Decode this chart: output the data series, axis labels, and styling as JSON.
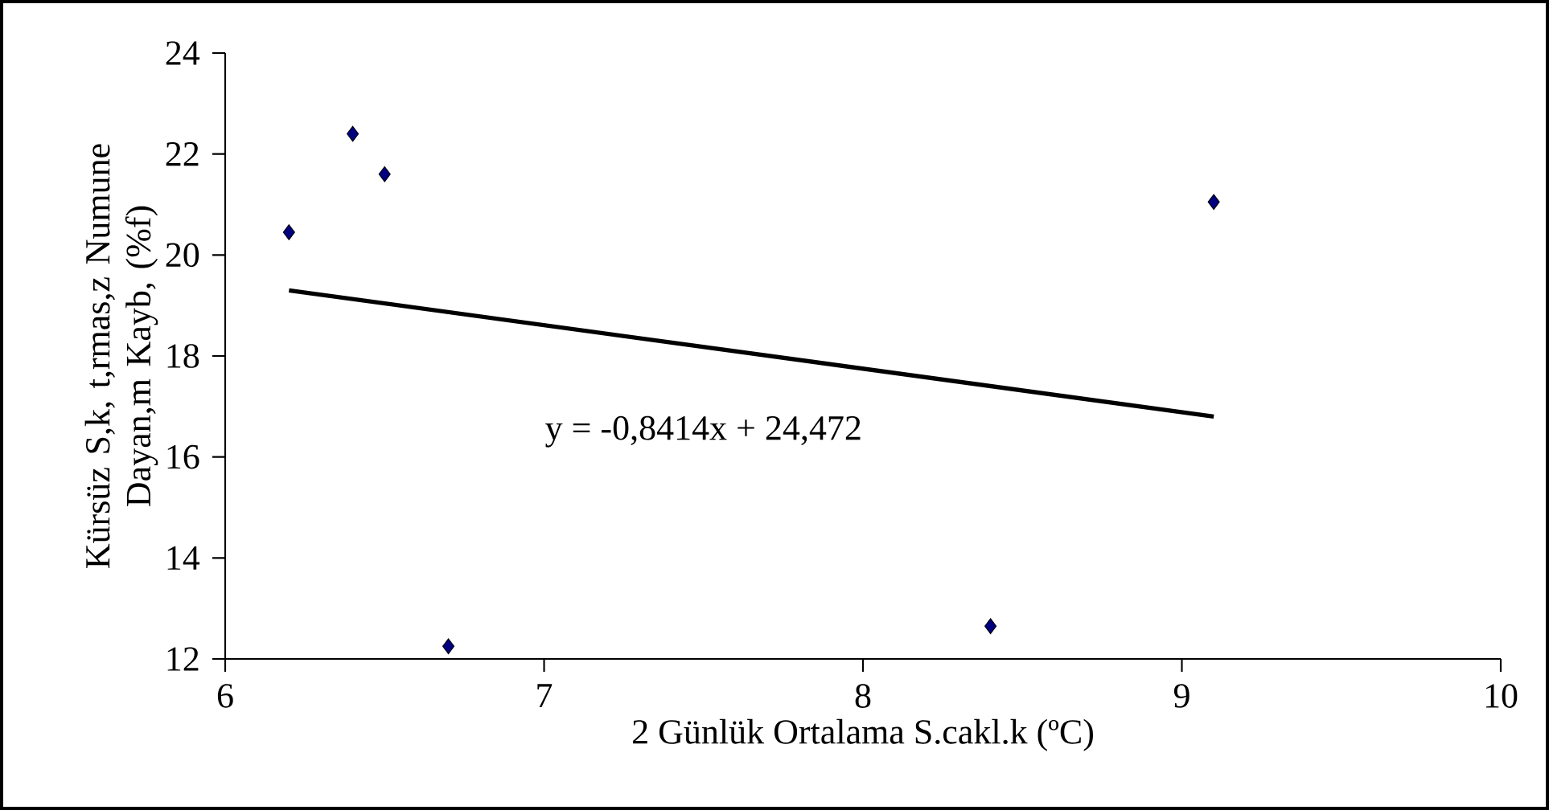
{
  "chart_data": {
    "type": "scatter",
    "xlabel": "2 Günlük Ortalama S.cakl.k (ºC)",
    "ylabel": "Kürsüz S,k, t,rmas,z Numune Dayan,m Kayb, (%f)",
    "annotations": [
      "y = -0,8414x + 24,472"
    ],
    "xlim": [
      6,
      10
    ],
    "xticks": [
      6,
      7,
      8,
      9,
      10
    ],
    "ylim": [
      12,
      24
    ],
    "yticks": [
      12,
      14,
      16,
      18,
      20,
      22,
      24
    ],
    "grid": false,
    "marker": "diamond",
    "series": [
      {
        "color": "#000080",
        "x": [
          6.2,
          6.4,
          6.5,
          6.7,
          8.4,
          9.1
        ],
        "values": [
          20.45,
          22.4,
          21.6,
          12.25,
          12.65,
          21.05
        ]
      },
      {
        "type": "line",
        "color": "#000000",
        "marker": "none",
        "line_style": "solid",
        "x": [
          6.2,
          9.1
        ],
        "values": [
          19.3,
          16.8
        ]
      }
    ]
  }
}
